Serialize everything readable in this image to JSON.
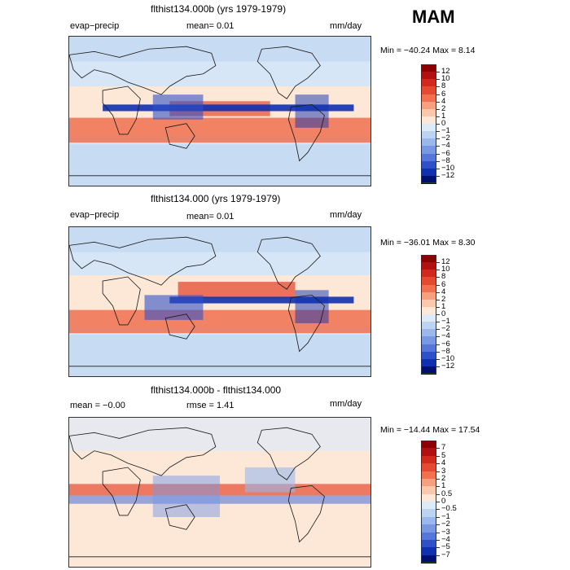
{
  "season": "MAM",
  "panels": [
    {
      "title": "flthist134.000b (yrs 1979-1979)",
      "left_label": "evap−precip",
      "center_label": "mean=   0.01",
      "units": "mm/day",
      "minmax": "Min = −40.24 Max =   8.14",
      "colorbar_labels": [
        "12",
        "10",
        "8",
        "6",
        "4",
        "2",
        "1",
        "0",
        "−1",
        "−2",
        "−4",
        "−6",
        "−8",
        "−10",
        "−12"
      ]
    },
    {
      "title": "flthist134.000 (yrs 1979-1979)",
      "left_label": "evap−precip",
      "center_label": "mean=   0.01",
      "units": "mm/day",
      "minmax": "Min = −36.01 Max =   8.30",
      "colorbar_labels": [
        "12",
        "10",
        "8",
        "6",
        "4",
        "2",
        "1",
        "0",
        "−1",
        "−2",
        "−4",
        "−6",
        "−8",
        "−10",
        "−12"
      ]
    },
    {
      "title": "flthist134.000b - flthist134.000",
      "left_label": "mean =  −0.00",
      "center_label": "rmse =   1.41",
      "units": "mm/day",
      "minmax": "Min = −14.44 Max =  17.54",
      "colorbar_labels": [
        "7",
        "5",
        "4",
        "3",
        "2",
        "1",
        "0.5",
        "0",
        "−0.5",
        "−1",
        "−2",
        "−3",
        "−4",
        "−5",
        "−7"
      ]
    }
  ],
  "colors": {
    "colorbar": [
      "#8b0000",
      "#b01010",
      "#cf2a1c",
      "#e44a30",
      "#f07050",
      "#f7a080",
      "#fbc8ac",
      "#fde8d8",
      "#ddeaf8",
      "#bcd4f2",
      "#9ab8ec",
      "#7898e4",
      "#5676dc",
      "#3050c8",
      "#1030b0",
      "#001070"
    ],
    "ocean": "#d6e6f6",
    "land_line": "#1a1a1a"
  }
}
